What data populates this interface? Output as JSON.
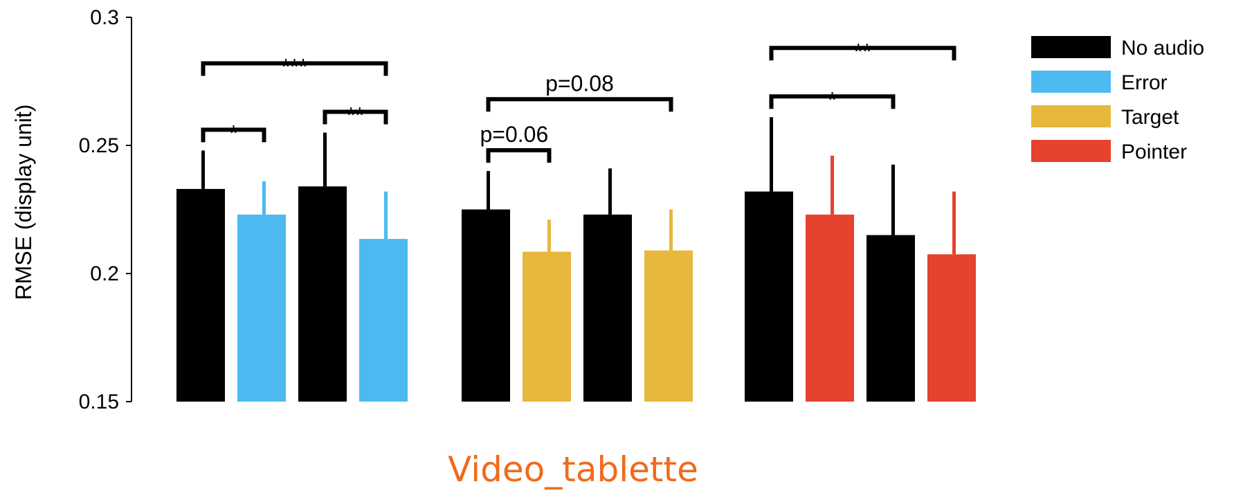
{
  "chart_data": {
    "type": "bar",
    "ylabel": "RMSE (display unit)",
    "ylim": [
      0.15,
      0.3
    ],
    "yticks": [
      0.15,
      0.2,
      0.25,
      0.3
    ],
    "ytick_labels": [
      "0.15",
      "0.2",
      "0.25",
      "0.3"
    ],
    "xlabel": "Video_tablette",
    "legend": {
      "placement": "right",
      "entries": [
        {
          "name": "No audio",
          "color": "#000000"
        },
        {
          "name": "Error",
          "color": "#4cbaf0"
        },
        {
          "name": "Target",
          "color": "#e6b83c"
        },
        {
          "name": "Pointer",
          "color": "#e5432d"
        }
      ]
    },
    "groups": [
      {
        "bars": [
          {
            "condition": "No audio",
            "value": 0.233,
            "err": 0.015
          },
          {
            "condition": "Error",
            "value": 0.223,
            "err": 0.013
          },
          {
            "condition": "No audio",
            "value": 0.234,
            "err": 0.021
          },
          {
            "condition": "Error",
            "value": 0.2135,
            "err": 0.0185
          }
        ],
        "brackets": [
          {
            "from": 0,
            "to": 1,
            "label": "*",
            "level": 0
          },
          {
            "from": 2,
            "to": 3,
            "label": "**",
            "level": 0
          },
          {
            "from": 0,
            "to": 3,
            "label": "***",
            "level": 1
          }
        ]
      },
      {
        "bars": [
          {
            "condition": "No audio",
            "value": 0.225,
            "err": 0.015
          },
          {
            "condition": "Target",
            "value": 0.2085,
            "err": 0.0125
          },
          {
            "condition": "No audio",
            "value": 0.223,
            "err": 0.018
          },
          {
            "condition": "Target",
            "value": 0.209,
            "err": 0.016
          }
        ],
        "brackets": [
          {
            "from": 0,
            "to": 1,
            "label": "p=0.06",
            "level": 0
          },
          {
            "from": 0,
            "to": 3,
            "label": "p=0.08",
            "level": 1
          }
        ]
      },
      {
        "bars": [
          {
            "condition": "No audio",
            "value": 0.232,
            "err": 0.029
          },
          {
            "condition": "Pointer",
            "value": 0.223,
            "err": 0.023
          },
          {
            "condition": "No audio",
            "value": 0.215,
            "err": 0.0275
          },
          {
            "condition": "Pointer",
            "value": 0.2075,
            "err": 0.0245
          }
        ],
        "brackets": [
          {
            "from": 0,
            "to": 2,
            "label": "*",
            "level": 0
          },
          {
            "from": 0,
            "to": 3,
            "label": "**",
            "level": 1
          }
        ]
      }
    ]
  }
}
